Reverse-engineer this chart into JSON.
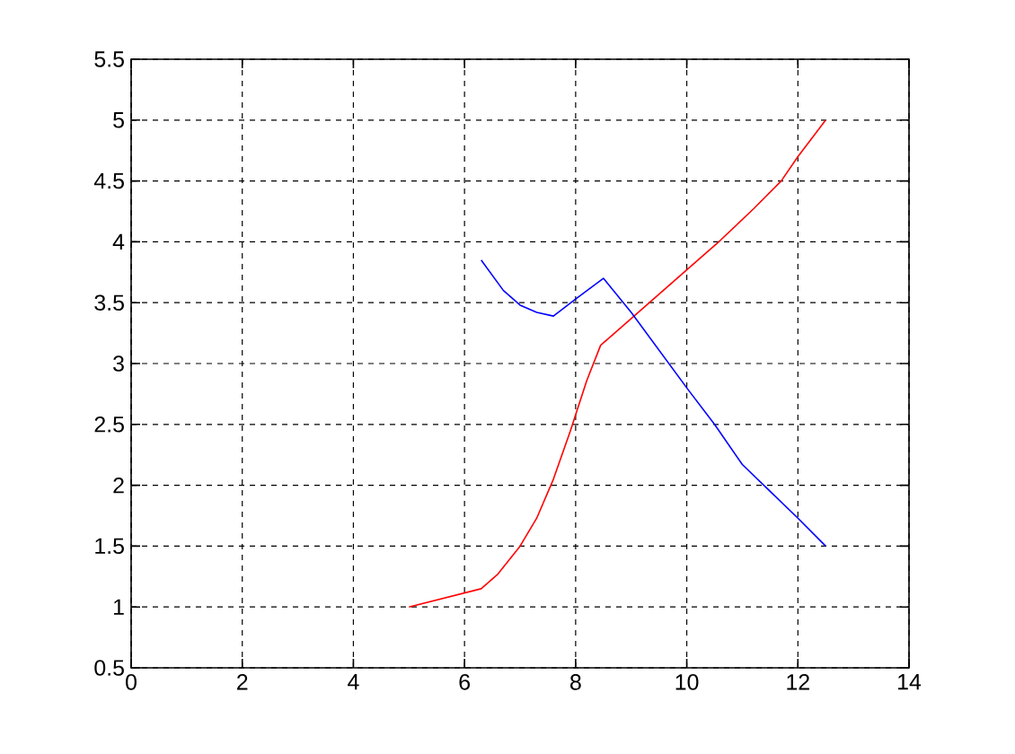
{
  "chart_data": {
    "type": "line",
    "series": [
      {
        "color": "#ff0000",
        "x": [
          5,
          6.3,
          6.6,
          7,
          7.3,
          7.6,
          7.9,
          8.2,
          8.45,
          8.65,
          9.3,
          10,
          10.6,
          11.2,
          11.7,
          12,
          12.5
        ],
        "values": [
          1,
          1.15,
          1.27,
          1.5,
          1.73,
          2.05,
          2.44,
          2.86,
          3.15,
          3.23,
          3.49,
          3.77,
          4.01,
          4.27,
          4.5,
          4.7,
          5
        ]
      },
      {
        "color": "#0000ff",
        "x": [
          6.3,
          6.7,
          7,
          7.3,
          7.6,
          8,
          8.5,
          9,
          10,
          10.5,
          11,
          11.5,
          12,
          12.5
        ],
        "values": [
          3.85,
          3.6,
          3.48,
          3.42,
          3.39,
          3.53,
          3.7,
          3.42,
          2.8,
          2.5,
          2.17,
          1.95,
          1.73,
          1.5
        ]
      }
    ],
    "xlim": [
      0,
      14
    ],
    "ylim": [
      0.5,
      5.5
    ],
    "xticks": [
      0,
      2,
      4,
      6,
      8,
      10,
      12,
      14
    ],
    "yticks": [
      0.5,
      1,
      1.5,
      2,
      2.5,
      3,
      3.5,
      4,
      4.5,
      5,
      5.5
    ],
    "grid": true
  }
}
